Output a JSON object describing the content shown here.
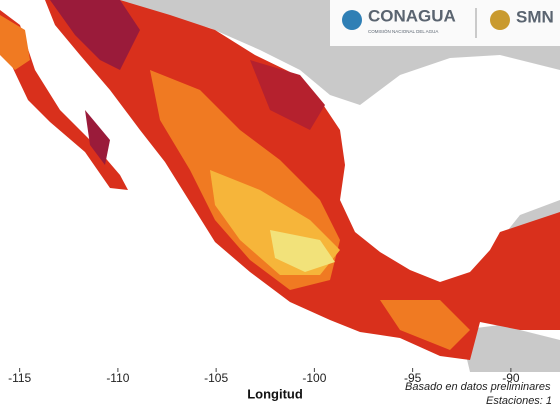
{
  "header": {
    "logo_title": "CONAGUA",
    "logo_subtitle": "COMISIÓN NACIONAL DEL AGUA",
    "logo_right": "SMN"
  },
  "map": {
    "xlabel": "Longitud",
    "xlim": [
      -116,
      -87.5
    ],
    "xticks": [
      -115,
      -110,
      -105,
      -100,
      -95,
      -90
    ],
    "note": "Basado en datos preliminares",
    "note_2": "Estaciones: 1"
  }
}
